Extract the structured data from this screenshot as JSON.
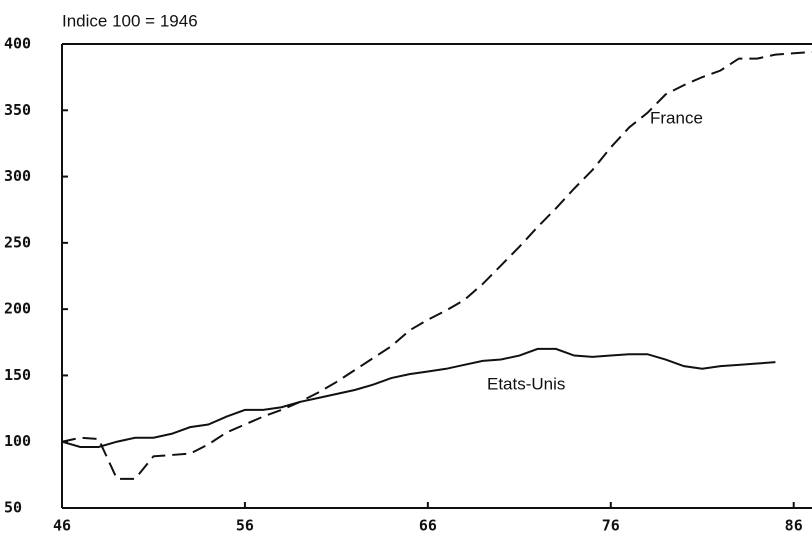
{
  "chart_data": {
    "type": "line",
    "title": "Indice 100 = 1946",
    "x": [
      46,
      47,
      48,
      49,
      50,
      51,
      52,
      53,
      54,
      55,
      56,
      57,
      58,
      59,
      60,
      61,
      62,
      63,
      64,
      65,
      66,
      67,
      68,
      69,
      70,
      71,
      72,
      73,
      74,
      75,
      76,
      77,
      78,
      79,
      80,
      81,
      82,
      83,
      84,
      85,
      86,
      87
    ],
    "series": [
      {
        "name": "France",
        "color": "#111111",
        "dashed": true,
        "values": [
          100,
          103,
          102,
          72,
          72,
          89,
          90,
          91,
          98,
          107,
          113,
          119,
          124,
          130,
          137,
          145,
          154,
          163,
          172,
          184,
          192,
          199,
          207,
          219,
          233,
          247,
          262,
          276,
          291,
          305,
          322,
          337,
          348,
          362,
          369,
          375,
          380,
          389,
          389,
          392,
          393,
          394
        ]
      },
      {
        "name": "Etats-Unis",
        "color": "#111111",
        "dashed": false,
        "values": [
          100,
          96,
          96,
          100,
          103,
          103,
          106,
          111,
          113,
          119,
          124,
          124,
          126,
          130,
          133,
          136,
          139,
          143,
          148,
          151,
          153,
          155,
          158,
          161,
          162,
          165,
          170,
          170,
          165,
          164,
          165,
          166,
          166,
          162,
          157,
          155,
          157,
          158,
          159,
          160,
          null,
          null
        ]
      }
    ],
    "xlim": [
      46,
      87
    ],
    "xticks": [
      46,
      56,
      66,
      76,
      86
    ],
    "ylim": [
      50,
      400
    ],
    "yticks": [
      50,
      100,
      150,
      200,
      250,
      300,
      350,
      400
    ]
  }
}
